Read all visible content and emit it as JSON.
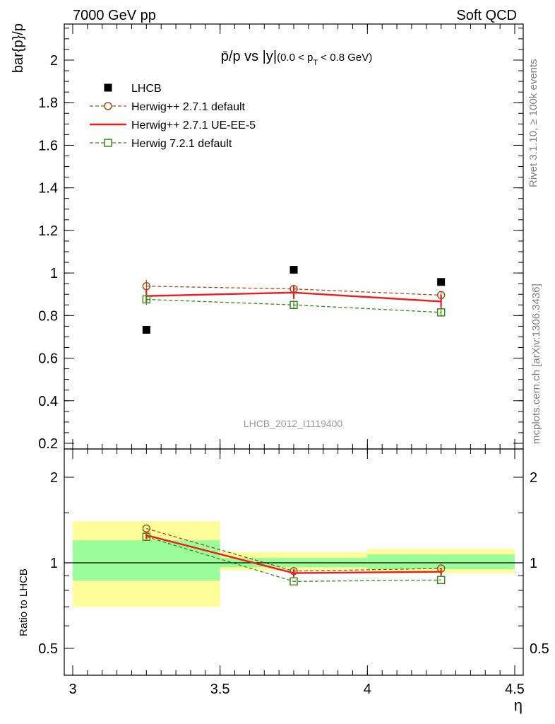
{
  "header": {
    "left": "7000 GeV pp",
    "right": "Soft QCD"
  },
  "side_labels": {
    "rivet": "Rivet 3.1.10, ≥ 100k events",
    "source": "mcplots.cern.ch [arXiv:1306.3436]"
  },
  "chart_data": [
    {
      "type": "scatter",
      "title_main": "p̄/p vs |y|",
      "title_cut_pre": "(0.0 < p",
      "title_cut_sub": "T",
      "title_cut_post": " < 0.8 GeV)",
      "ylabel": "bar{p}/p",
      "xlabel": "η",
      "analysis_tag": "LHCB_2012_I1119400",
      "xlim": [
        3.0,
        4.5
      ],
      "ylim": [
        0.18,
        2.17
      ],
      "x_ticks": [
        3,
        3.5,
        4,
        4.5
      ],
      "x_tick_labels": [
        "3",
        "3.5",
        "4",
        "4.5"
      ],
      "y_ticks": [
        0.2,
        0.4,
        0.6,
        0.8,
        1.0,
        1.2,
        1.4,
        1.6,
        1.8,
        2.0
      ],
      "y_tick_labels": [
        "0.2",
        "0.4",
        "0.6",
        "0.8",
        "1",
        "1.2",
        "1.4",
        "1.6",
        "1.8",
        "2"
      ],
      "legend_position": "top-left",
      "series": [
        {
          "name": "LHCB",
          "style": "data",
          "color": "#000000",
          "x": [
            3.25,
            3.75,
            4.25
          ],
          "y": [
            0.733,
            1.015,
            0.958
          ]
        },
        {
          "name": "Herwig++ 2.7.1 default",
          "style": "circle-dashed",
          "color": "#a0521a",
          "x": [
            3.25,
            3.75,
            4.25
          ],
          "y": [
            0.938,
            0.925,
            0.896
          ],
          "err": [
            0.03,
            0.02,
            0.02
          ]
        },
        {
          "name": "Herwig++ 2.7.1 UE-EE-5",
          "style": "solid",
          "color": "#ee1c1c",
          "x": [
            3.25,
            3.75,
            4.25
          ],
          "y": [
            0.892,
            0.908,
            0.866
          ],
          "err": [
            0.03,
            0.03,
            0.03
          ]
        },
        {
          "name": "Herwig 7.2.1 default",
          "style": "square-dashed",
          "color": "#3a8c1c",
          "x": [
            3.25,
            3.75,
            4.25
          ],
          "y": [
            0.876,
            0.85,
            0.815
          ],
          "err": [
            0.025,
            0.02,
            0.02
          ]
        }
      ]
    },
    {
      "type": "scatter",
      "ylabel": "Ratio to LHCB",
      "xlabel": "η",
      "log_y": true,
      "xlim": [
        3.0,
        4.5
      ],
      "ylim": [
        0.395,
        2.4
      ],
      "y_ticks": [
        0.5,
        1,
        2
      ],
      "y_tick_labels": [
        "0.5",
        "1",
        "2"
      ],
      "bands": [
        {
          "x0": 3.0,
          "x1": 3.5,
          "inner": [
            0.866,
            1.2
          ],
          "outer": [
            0.7,
            1.4
          ]
        },
        {
          "x0": 3.5,
          "x1": 4.0,
          "inner": [
            0.965,
            1.04
          ],
          "outer": [
            0.94,
            1.09
          ]
        },
        {
          "x0": 4.0,
          "x1": 4.5,
          "inner": [
            0.95,
            1.07
          ],
          "outer": [
            0.92,
            1.12
          ]
        }
      ],
      "band_colors": {
        "inner": "#9afd9a",
        "outer": "#fdfd9a"
      },
      "series": [
        {
          "name": "Herwig++ 2.7.1 default",
          "style": "circle-dashed",
          "color": "#a0521a",
          "x": [
            3.25,
            3.75,
            4.25
          ],
          "y": [
            1.32,
            0.935,
            0.955
          ]
        },
        {
          "name": "Herwig++ 2.7.1 UE-EE-5",
          "style": "solid",
          "color": "#ee1c1c",
          "x": [
            3.25,
            3.75,
            4.25
          ],
          "y": [
            1.25,
            0.92,
            0.93
          ],
          "err": [
            0.04,
            0.03,
            0.03
          ]
        },
        {
          "name": "Herwig 7.2.1 default",
          "style": "square-dashed",
          "color": "#3a8c1c",
          "x": [
            3.25,
            3.75,
            4.25
          ],
          "y": [
            1.235,
            0.86,
            0.87
          ]
        }
      ]
    }
  ]
}
